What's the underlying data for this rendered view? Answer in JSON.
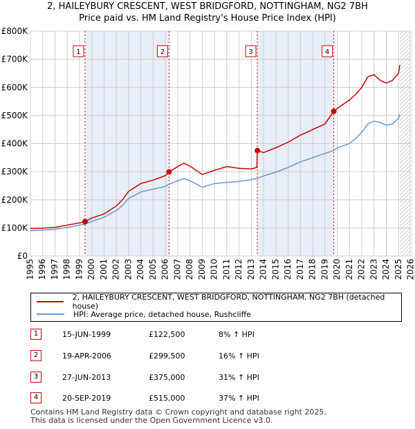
{
  "title_line1": "2, HAILEYBURY CRESCENT, WEST BRIDGFORD, NOTTINGHAM, NG2 7BH",
  "title_line2": "Price paid vs. HM Land Registry's House Price Index (HPI)",
  "colors": {
    "property": "#cc0000",
    "hpi": "#6699cc",
    "shade": "#e8eef8",
    "grid": "#cccccc"
  },
  "chart_data": {
    "type": "line",
    "title": "2, HAILEYBURY CRESCENT, WEST BRIDGFORD, NOTTINGHAM, NG2 7BH — Price paid vs. HM Land Registry's House Price Index (HPI)",
    "xlabel": "",
    "ylabel": "",
    "xlim": [
      1995,
      2026
    ],
    "ylim": [
      0,
      800000
    ],
    "y_ticks": [
      0,
      100000,
      200000,
      300000,
      400000,
      500000,
      600000,
      700000,
      800000
    ],
    "y_tick_labels": [
      "£0",
      "£100K",
      "£200K",
      "£300K",
      "£400K",
      "£500K",
      "£600K",
      "£700K",
      "£800K"
    ],
    "x_ticks": [
      1995,
      1996,
      1997,
      1998,
      1999,
      2000,
      2001,
      2002,
      2003,
      2004,
      2005,
      2006,
      2007,
      2008,
      2009,
      2010,
      2011,
      2012,
      2013,
      2014,
      2015,
      2016,
      2017,
      2018,
      2019,
      2020,
      2021,
      2022,
      2023,
      2024,
      2025,
      2026
    ],
    "x_tick_labels": [
      "1995",
      "1996",
      "1997",
      "1998",
      "1999",
      "2000",
      "2001",
      "2002",
      "2003",
      "2004",
      "2005",
      "2006",
      "2007",
      "2008",
      "2009",
      "2010",
      "2011",
      "2012",
      "2013",
      "2014",
      "2015",
      "2016",
      "2017",
      "2018",
      "2019",
      "2020",
      "2021",
      "2022",
      "2023",
      "2024",
      "2025",
      "2026"
    ],
    "shaded_ranges": [
      [
        1999.45,
        2006.3
      ],
      [
        2013.49,
        2019.72
      ]
    ],
    "hatched_from": 2025.1,
    "series": [
      {
        "name": "2, HAILEYBURY CRESCENT, WEST BRIDGFORD, NOTTINGHAM, NG2 7BH (detached house)",
        "color": "#cc0000",
        "x": [
          1995,
          1996,
          1997,
          1998,
          1999,
          1999.45,
          2000,
          2001,
          2002,
          2002.5,
          2003,
          2004,
          2005,
          2006,
          2006.3,
          2007,
          2007.5,
          2008,
          2009,
          2010,
          2011,
          2012,
          2013,
          2013.45,
          2013.49,
          2014,
          2015,
          2016,
          2017,
          2018,
          2019,
          2019.72,
          2020,
          2021,
          2021.5,
          2022,
          2022.5,
          2023,
          2023.5,
          2024,
          2024.5,
          2025,
          2025.1
        ],
        "values": [
          98000,
          99000,
          102000,
          110000,
          118000,
          122500,
          135000,
          150000,
          178000,
          200000,
          230000,
          258000,
          270000,
          286000,
          299500,
          318000,
          330000,
          320000,
          290000,
          305000,
          318000,
          312000,
          310000,
          315000,
          375000,
          368000,
          385000,
          405000,
          430000,
          450000,
          470000,
          515000,
          525000,
          555000,
          575000,
          600000,
          638000,
          645000,
          625000,
          615000,
          625000,
          650000,
          680000
        ]
      },
      {
        "name": "HPI: Average price, detached house, Rushcliffe",
        "color": "#6699cc",
        "x": [
          1995,
          1996,
          1997,
          1998,
          1999,
          1999.45,
          2000,
          2001,
          2002,
          2002.5,
          2003,
          2004,
          2005,
          2006,
          2006.3,
          2007,
          2007.5,
          2008,
          2009,
          2010,
          2011,
          2012,
          2013,
          2013.49,
          2014,
          2015,
          2016,
          2017,
          2018,
          2019,
          2019.72,
          2020,
          2021,
          2021.5,
          2022,
          2022.5,
          2023,
          2023.5,
          2024,
          2024.5,
          2025,
          2025.1
        ],
        "values": [
          90000,
          92000,
          95000,
          102000,
          110000,
          113000,
          123000,
          138000,
          162000,
          180000,
          205000,
          228000,
          238000,
          248000,
          255000,
          268000,
          275000,
          268000,
          245000,
          258000,
          262000,
          265000,
          272000,
          276000,
          285000,
          298000,
          315000,
          335000,
          350000,
          365000,
          376000,
          385000,
          400000,
          418000,
          440000,
          470000,
          480000,
          475000,
          465000,
          470000,
          490000,
          505000
        ]
      }
    ],
    "sales": [
      {
        "id": "1",
        "x": 1999.45,
        "price": 122500
      },
      {
        "id": "2",
        "x": 2006.3,
        "price": 299500
      },
      {
        "id": "3",
        "x": 2013.49,
        "price": 375000
      },
      {
        "id": "4",
        "x": 2019.72,
        "price": 515000
      }
    ]
  },
  "legend": {
    "property": "2, HAILEYBURY CRESCENT, WEST BRIDGFORD, NOTTINGHAM, NG2 7BH (detached house)",
    "hpi": "HPI: Average price, detached house, Rushcliffe"
  },
  "sales_table": [
    {
      "num": "1",
      "date": "15-JUN-1999",
      "price": "£122,500",
      "hpi": "8% ↑ HPI"
    },
    {
      "num": "2",
      "date": "19-APR-2006",
      "price": "£299,500",
      "hpi": "16% ↑ HPI"
    },
    {
      "num": "3",
      "date": "27-JUN-2013",
      "price": "£375,000",
      "hpi": "31% ↑ HPI"
    },
    {
      "num": "4",
      "date": "20-SEP-2019",
      "price": "£515,000",
      "hpi": "37% ↑ HPI"
    }
  ],
  "footer_line1": "Contains HM Land Registry data © Crown copyright and database right 2025.",
  "footer_line2": "This data is licensed under the Open Government Licence v3.0."
}
